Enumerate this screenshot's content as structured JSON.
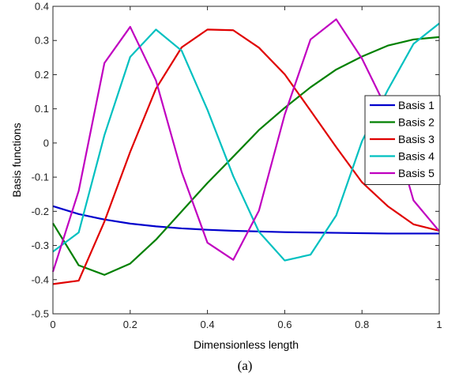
{
  "chart_data": {
    "type": "line",
    "title": "",
    "xlabel": "Dimensionless length",
    "ylabel": "Basis functions",
    "xlim": [
      0,
      1
    ],
    "ylim": [
      -0.5,
      0.4
    ],
    "grid": false,
    "legend_position": "right",
    "x_ticks": [
      "0",
      "0.2",
      "0.4",
      "0.6",
      "0.8",
      "1"
    ],
    "x_tick_values": [
      0,
      0.2,
      0.4,
      0.6,
      0.8,
      1
    ],
    "y_ticks": [
      "-0.5",
      "-0.4",
      "-0.3",
      "-0.2",
      "-0.1",
      "0",
      "0.1",
      "0.2",
      "0.3",
      "0.4"
    ],
    "y_tick_values": [
      -0.5,
      -0.4,
      -0.3,
      -0.2,
      -0.1,
      0,
      0.1,
      0.2,
      0.3,
      0.4
    ],
    "x": [
      0,
      0.0667,
      0.1333,
      0.2,
      0.2667,
      0.3333,
      0.4,
      0.4667,
      0.5333,
      0.6,
      0.6667,
      0.7333,
      0.8,
      0.8667,
      0.9333,
      1
    ],
    "series": [
      {
        "name": "Basis 1",
        "color": "#0000cc",
        "values": [
          -0.185,
          -0.208,
          -0.224,
          -0.236,
          -0.244,
          -0.25,
          -0.254,
          -0.257,
          -0.259,
          -0.261,
          -0.262,
          -0.263,
          -0.264,
          -0.265,
          -0.265,
          -0.265
        ]
      },
      {
        "name": "Basis 2",
        "color": "#008000",
        "values": [
          -0.235,
          -0.358,
          -0.386,
          -0.353,
          -0.283,
          -0.2,
          -0.117,
          -0.04,
          0.038,
          0.103,
          0.163,
          0.215,
          0.253,
          0.285,
          0.303,
          0.31
        ]
      },
      {
        "name": "Basis 3",
        "color": "#e00000",
        "values": [
          -0.413,
          -0.403,
          -0.23,
          -0.026,
          0.159,
          0.28,
          0.332,
          0.33,
          0.279,
          0.201,
          0.095,
          -0.012,
          -0.115,
          -0.185,
          -0.238,
          -0.257
        ]
      },
      {
        "name": "Basis 4",
        "color": "#00c0c0",
        "values": [
          -0.318,
          -0.262,
          0.023,
          0.252,
          0.332,
          0.27,
          0.097,
          -0.097,
          -0.26,
          -0.344,
          -0.327,
          -0.212,
          0.005,
          0.155,
          0.29,
          0.35
        ]
      },
      {
        "name": "Basis 5",
        "color": "#c000c0",
        "values": [
          -0.377,
          -0.14,
          0.234,
          0.34,
          0.183,
          -0.085,
          -0.292,
          -0.342,
          -0.198,
          0.083,
          0.303,
          0.362,
          0.247,
          0.093,
          -0.168,
          -0.258
        ]
      }
    ]
  },
  "caption": "(a)"
}
